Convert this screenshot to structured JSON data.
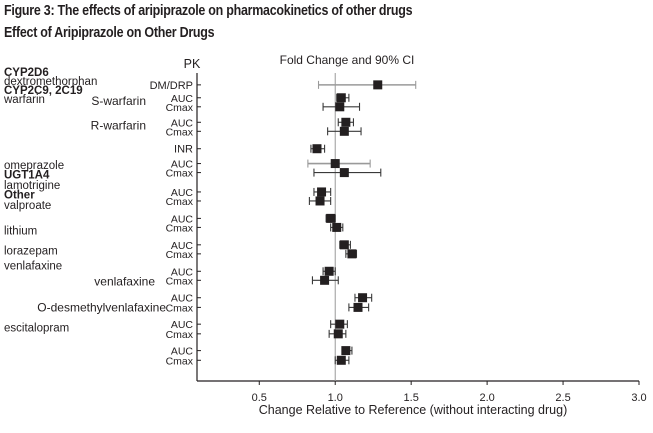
{
  "figure_title": "Figure 3: The effects of aripiprazole on pharmacokinetics of other drugs",
  "figure_subtitle": "Effect of Aripiprazole on Other Drugs",
  "chart_data": {
    "type": "forest",
    "title": "Effect of Aripiprazole on Other Drugs",
    "pk_header": "PK",
    "plot_header": "Fold Change and 90% CI",
    "xlabel": "Change Relative to Reference (without interacting drug)",
    "xlim": [
      0.09,
      3.0
    ],
    "xticks": [
      "0.5",
      "1.0",
      "1.5",
      "2.0",
      "2.5",
      "3.0"
    ],
    "xtick_values": [
      0.5,
      1.0,
      1.5,
      2.0,
      2.5,
      3.0
    ],
    "reference_line": 1.0,
    "colors": {
      "point": "#231f20",
      "ci_dark": "#3a3a3a",
      "ci_gray": "#9a9a9a",
      "ref_line": "#9a9a9a",
      "axis": "#231f20"
    },
    "group_labels": [
      {
        "text": "CYP2D6",
        "bold": true,
        "row": 0
      },
      {
        "text": "dextromethorphan",
        "bold": false,
        "row": 0.7
      },
      {
        "text": "CYP2C9, 2C19",
        "bold": true,
        "row": 1.4
      },
      {
        "text": "warfarin",
        "bold": false,
        "row": 2.1
      },
      {
        "text": "omeprazole",
        "bold": false,
        "row": 7.2
      },
      {
        "text": "UGT1A4",
        "bold": true,
        "row": 7.95
      },
      {
        "text": "lamotrigine",
        "bold": false,
        "row": 8.75
      },
      {
        "text": "Other",
        "bold": true,
        "row": 9.5
      },
      {
        "text": "valproate",
        "bold": false,
        "row": 10.3
      },
      {
        "text": "lithium",
        "bold": false,
        "row": 12.3
      },
      {
        "text": "lorazepam",
        "bold": false,
        "row": 13.85
      },
      {
        "text": "venlafaxine",
        "bold": false,
        "row": 15.0
      },
      {
        "text": "escitalopram",
        "bold": false,
        "row": 19.8
      }
    ],
    "sub_labels": [
      {
        "text": "S-warfarin",
        "row": 1.55
      },
      {
        "text": "R-warfarin",
        "row": 3.45
      },
      {
        "text": "venlafaxine",
        "row": 15.55
      },
      {
        "text": "O-desmethylvenlafaxine",
        "row": 17.55
      }
    ],
    "rows": [
      {
        "pk": "DM/DRP",
        "value": 1.28,
        "ci": [
          0.89,
          1.53
        ],
        "ci_color": "gray",
        "y": 0.3
      },
      {
        "pk": "AUC",
        "value": 1.04,
        "ci": [
          1.01,
          1.09
        ],
        "ci_color": "dark",
        "y": 1.3
      },
      {
        "pk": "Cmax",
        "value": 1.03,
        "ci": [
          0.92,
          1.16
        ],
        "ci_color": "dark",
        "y": 2.0
      },
      {
        "pk": "AUC",
        "value": 1.07,
        "ci": [
          1.02,
          1.12
        ],
        "ci_color": "dark",
        "y": 3.2
      },
      {
        "pk": "Cmax",
        "value": 1.06,
        "ci": [
          0.95,
          1.17
        ],
        "ci_color": "dark",
        "y": 3.9
      },
      {
        "pk": "INR",
        "value": 0.88,
        "ci": [
          0.84,
          0.93
        ],
        "ci_color": "dark",
        "y": 5.25
      },
      {
        "pk": "AUC",
        "value": 1.0,
        "ci": [
          0.82,
          1.23
        ],
        "ci_color": "gray",
        "y": 6.4
      },
      {
        "pk": "Cmax",
        "value": 1.06,
        "ci": [
          0.86,
          1.3
        ],
        "ci_color": "dark",
        "y": 7.1
      },
      {
        "pk": "AUC",
        "value": 0.91,
        "ci": [
          0.86,
          0.97
        ],
        "ci_color": "dark",
        "y": 8.6
      },
      {
        "pk": "Cmax",
        "value": 0.9,
        "ci": [
          0.83,
          0.97
        ],
        "ci_color": "dark",
        "y": 9.3
      },
      {
        "pk": "AUC",
        "value": 0.97,
        "ci": [
          0.94,
          1.0
        ],
        "ci_color": "dark",
        "y": 10.65
      },
      {
        "pk": "Cmax",
        "value": 1.01,
        "ci": [
          0.97,
          1.05
        ],
        "ci_color": "dark",
        "y": 11.35
      },
      {
        "pk": "AUC",
        "value": 1.06,
        "ci": [
          1.03,
          1.1
        ],
        "ci_color": "dark",
        "y": 12.7
      },
      {
        "pk": "Cmax",
        "value": 1.11,
        "ci": [
          1.07,
          1.14
        ],
        "ci_color": "dark",
        "y": 13.4
      },
      {
        "pk": "AUC",
        "value": 0.96,
        "ci": [
          0.92,
          1.0
        ],
        "ci_color": "dark",
        "y": 14.75
      },
      {
        "pk": "Cmax",
        "value": 0.93,
        "ci": [
          0.85,
          1.02
        ],
        "ci_color": "dark",
        "y": 15.45
      },
      {
        "pk": "AUC",
        "value": 1.18,
        "ci": [
          1.13,
          1.24
        ],
        "ci_color": "dark",
        "y": 16.8
      },
      {
        "pk": "Cmax",
        "value": 1.15,
        "ci": [
          1.09,
          1.22
        ],
        "ci_color": "dark",
        "y": 17.55
      },
      {
        "pk": "AUC",
        "value": 1.03,
        "ci": [
          0.97,
          1.08
        ],
        "ci_color": "dark",
        "y": 18.85
      },
      {
        "pk": "Cmax",
        "value": 1.02,
        "ci": [
          0.96,
          1.07
        ],
        "ci_color": "dark",
        "y": 19.6
      },
      {
        "pk": "AUC",
        "value": 1.07,
        "ci": [
          1.05,
          1.11
        ],
        "ci_color": "dark",
        "y": 20.9
      },
      {
        "pk": "Cmax",
        "value": 1.04,
        "ci": [
          1.0,
          1.09
        ],
        "ci_color": "dark",
        "y": 21.65
      }
    ]
  }
}
